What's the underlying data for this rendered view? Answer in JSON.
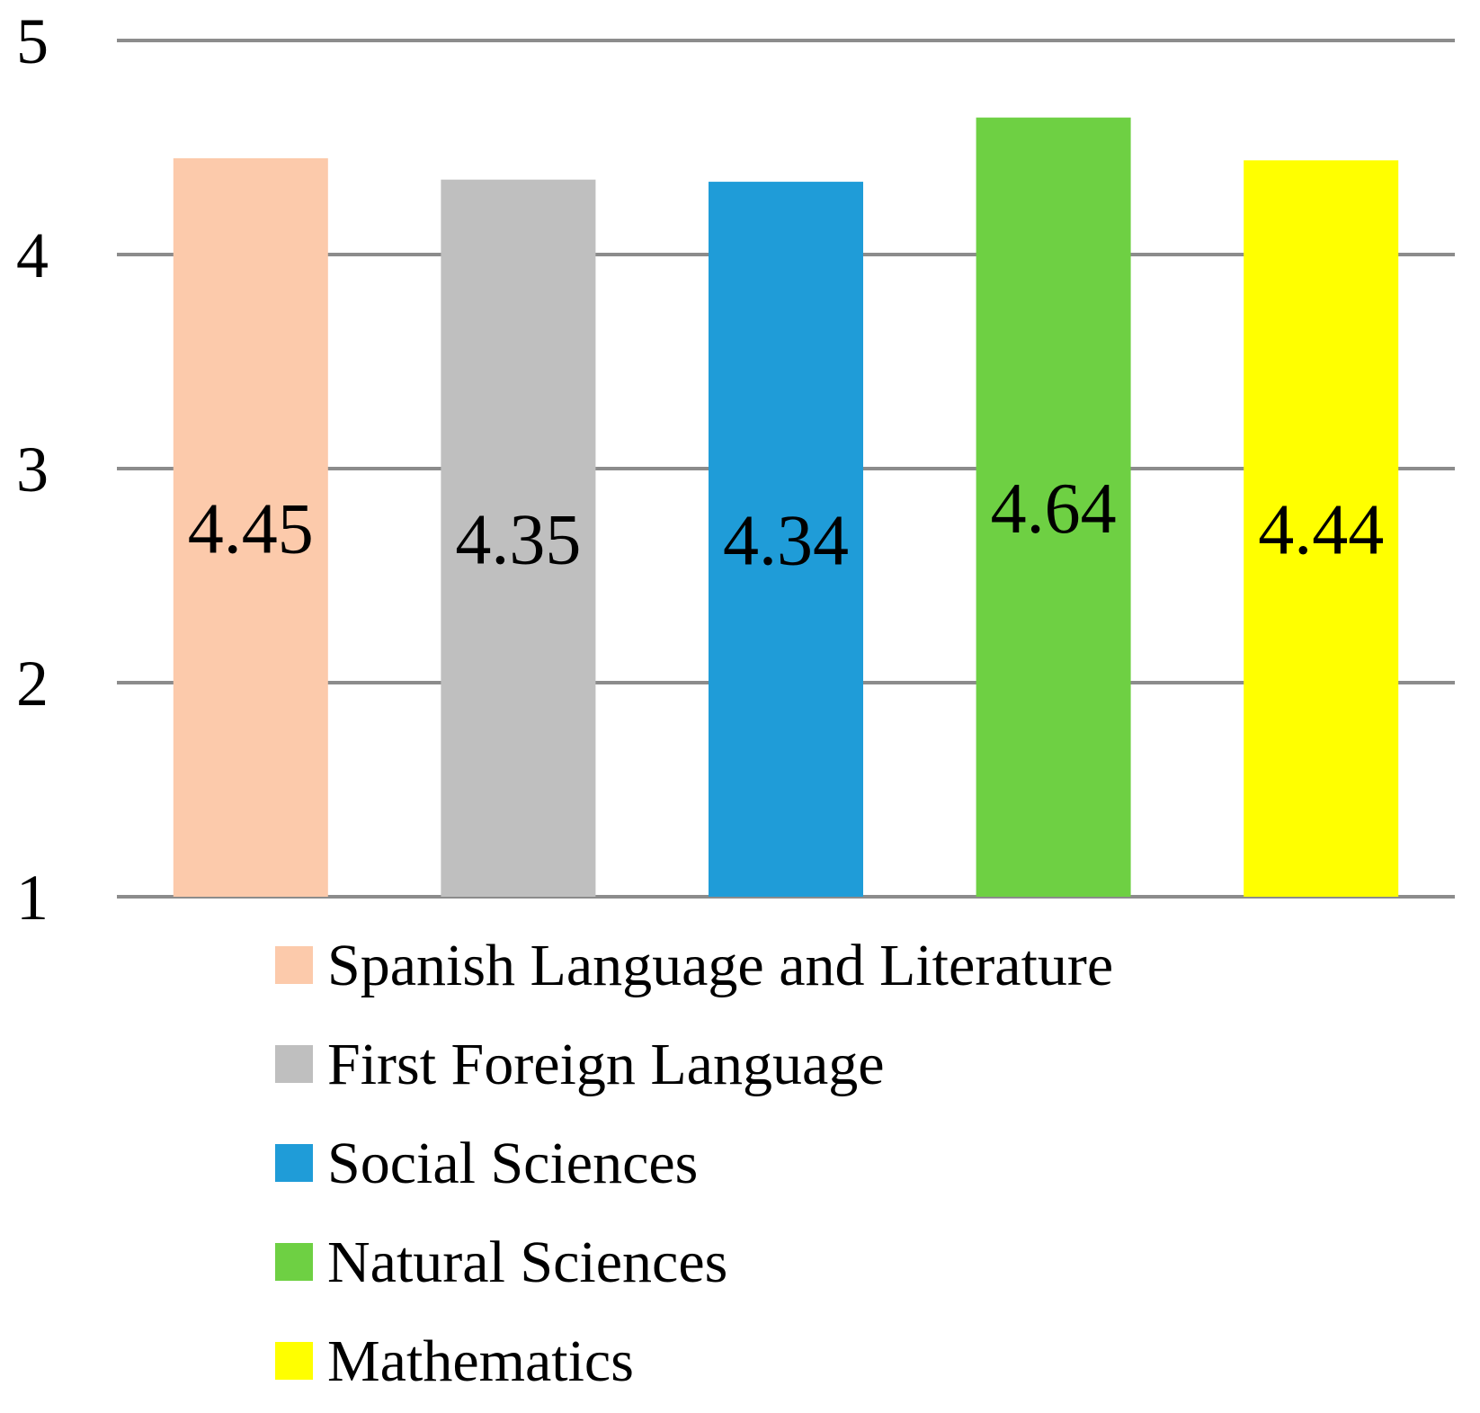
{
  "chart_data": {
    "type": "bar",
    "title": "",
    "xlabel": "",
    "ylabel": "",
    "ylim": [
      1,
      5
    ],
    "yticks": [
      1,
      2,
      3,
      4,
      5
    ],
    "grid": true,
    "legend_position": "bottom",
    "categories": [
      "Spanish Language and Literature",
      "First Foreign Language",
      "Social Sciences",
      "Natural Sciences",
      "Mathematics"
    ],
    "values": [
      4.45,
      4.35,
      4.34,
      4.64,
      4.44
    ],
    "data_labels": [
      "4.45",
      "4.35",
      "4.34",
      "4.64",
      "4.44"
    ],
    "colors": [
      "#fccaab",
      "#bfbfbf",
      "#1f9cd8",
      "#6ed043",
      "#ffff00"
    ]
  }
}
